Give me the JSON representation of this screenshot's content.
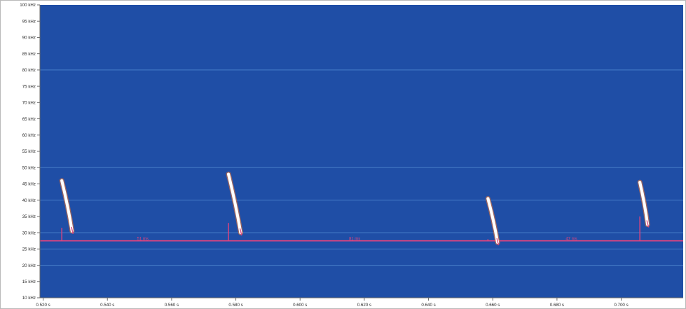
{
  "chart_data": {
    "type": "spectrogram",
    "x_unit": "s",
    "y_unit": "kHz",
    "xlim": [
      0.519,
      0.7193
    ],
    "ylim": [
      10,
      100
    ],
    "x_ticks": [
      {
        "value": 0.52,
        "label": "0.520 s"
      },
      {
        "value": 0.54,
        "label": "0.540 s"
      },
      {
        "value": 0.56,
        "label": "0.560 s"
      },
      {
        "value": 0.58,
        "label": "0.580 s"
      },
      {
        "value": 0.6,
        "label": "0.600 s"
      },
      {
        "value": 0.62,
        "label": "0.620 s"
      },
      {
        "value": 0.64,
        "label": "0.640 s"
      },
      {
        "value": 0.66,
        "label": "0.660 s"
      },
      {
        "value": 0.68,
        "label": "0.680 s"
      },
      {
        "value": 0.7,
        "label": "0.700 s"
      }
    ],
    "y_ticks": [
      {
        "value": 100,
        "label": "100 kHz"
      },
      {
        "value": 95,
        "label": "95 kHz"
      },
      {
        "value": 90,
        "label": "90 kHz"
      },
      {
        "value": 85,
        "label": "85 kHz"
      },
      {
        "value": 80,
        "label": "80 kHz"
      },
      {
        "value": 75,
        "label": "75 kHz"
      },
      {
        "value": 70,
        "label": "70 kHz"
      },
      {
        "value": 65,
        "label": "65 kHz"
      },
      {
        "value": 60,
        "label": "60 kHz"
      },
      {
        "value": 55,
        "label": "55 kHz"
      },
      {
        "value": 50,
        "label": "50 kHz"
      },
      {
        "value": 45,
        "label": "45 kHz"
      },
      {
        "value": 40,
        "label": "40 kHz"
      },
      {
        "value": 35,
        "label": "35 kHz"
      },
      {
        "value": 30,
        "label": "30 kHz"
      },
      {
        "value": 25,
        "label": "25 kHz"
      },
      {
        "value": 20,
        "label": "20 kHz"
      },
      {
        "value": 15,
        "label": "15 kHz"
      },
      {
        "value": 10,
        "label": "10 kHz"
      }
    ],
    "gridlines_khz": [
      80,
      50,
      40,
      30,
      25,
      20
    ],
    "reference_line_khz": 27.5,
    "calls": [
      {
        "start_s": 0.5258,
        "start_khz": 46,
        "end_s": 0.529,
        "end_khz": 30.5,
        "marker_s": 0.5258,
        "marker_top_khz": 31.5
      },
      {
        "start_s": 0.5777,
        "start_khz": 48,
        "end_s": 0.5815,
        "end_khz": 30,
        "marker_s": 0.5777,
        "marker_top_khz": 33
      },
      {
        "start_s": 0.6585,
        "start_khz": 40.5,
        "end_s": 0.6615,
        "end_khz": 27,
        "marker_s": 0.6585,
        "marker_top_khz": 28
      },
      {
        "start_s": 0.7058,
        "start_khz": 45.5,
        "end_s": 0.7082,
        "end_khz": 32.5,
        "marker_s": 0.7058,
        "marker_top_khz": 35
      }
    ],
    "interval_labels": [
      {
        "x_s": 0.551,
        "label": "51 ms"
      },
      {
        "x_s": 0.617,
        "label": "81 ms"
      },
      {
        "x_s": 0.6845,
        "label": "47 ms"
      }
    ],
    "colors": {
      "background": "#1f4ea6",
      "gridline": "#4f86cf",
      "reference_line": "#e0447e",
      "call_core": "#ffffff",
      "call_edge": "#ff7a2a",
      "tick_text": "#2b2b2b"
    }
  }
}
